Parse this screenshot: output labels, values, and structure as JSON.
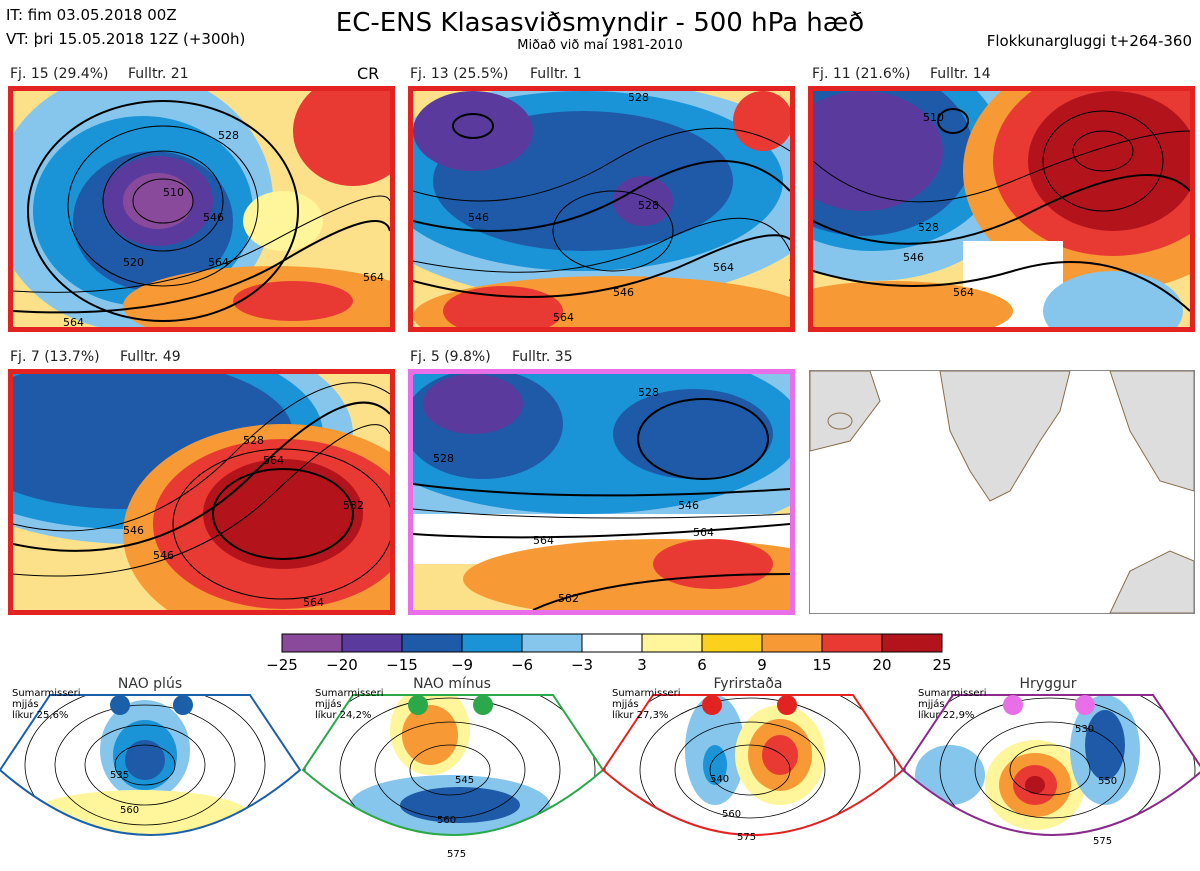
{
  "header": {
    "it_line": "IT: fim 03.05.2018 00Z",
    "vt_line": "VT: þri 15.05.2018 12Z  (+300h)",
    "title": "EC-ENS Klasasviðsmyndir - 500 hPa hæð",
    "subtitle": "Miðað við maí 1981-2010",
    "window": "Flokkunargluggi t+264-360"
  },
  "panels": [
    {
      "label": "Fj. 15 (29.4%)",
      "rep": "Fulltr. 21",
      "tag": "CR",
      "border": "#e32222"
    },
    {
      "label": "Fj. 13 (25.5%)",
      "rep": "Fulltr. 1",
      "tag": "",
      "border": "#e32222"
    },
    {
      "label": "Fj. 11 (21.6%)",
      "rep": "Fulltr. 14",
      "tag": "",
      "border": "#e32222"
    },
    {
      "label": "Fj. 7 (13.7%)",
      "rep": "Fulltr. 49",
      "tag": "",
      "border": "#e32222"
    },
    {
      "label": "Fj. 5 (9.8%)",
      "rep": "Fulltr. 35",
      "tag": "",
      "border": "#e96fe9"
    }
  ],
  "contour_labels": {
    "p1": [
      "46",
      "528",
      "520",
      "54",
      "510",
      "546",
      "528",
      "564",
      "564",
      "564"
    ],
    "p2": [
      "528",
      "546",
      "528",
      "564",
      "546",
      "564",
      "528"
    ],
    "p3": [
      "510",
      "46",
      "564",
      "528",
      "546",
      "564"
    ],
    "p4": [
      "546",
      "528",
      "546",
      "564",
      "582",
      "564"
    ],
    "p5": [
      "528",
      "528",
      "546",
      "564",
      "564",
      "582"
    ]
  },
  "chart_data": {
    "type": "heatmap",
    "title": "EC-ENS Klasasviðsmyndir - 500 hPa hæð",
    "colorbar": {
      "ticks": [
        "−25",
        "−20",
        "−15",
        "−9",
        "−6",
        "−3",
        "3",
        "6",
        "9",
        "15",
        "20",
        "25"
      ],
      "colors": [
        "#8a4a9c",
        "#5a3b9d",
        "#1e5aa8",
        "#1a94d6",
        "#86c6ec",
        "#ffffff",
        "#fff59a",
        "#fcd11c",
        "#f79a35",
        "#e83a32",
        "#b3141c"
      ]
    },
    "clusters": [
      {
        "name": "Fj. 15",
        "percent": 29.4,
        "representative": 21
      },
      {
        "name": "Fj. 13",
        "percent": 25.5,
        "representative": 1
      },
      {
        "name": "Fj. 11",
        "percent": 21.6,
        "representative": 14
      },
      {
        "name": "Fj. 7",
        "percent": 13.7,
        "representative": 49
      },
      {
        "name": "Fj. 5",
        "percent": 9.8,
        "representative": 35
      }
    ],
    "regimes": [
      {
        "name": "NAO plús",
        "season": "Sumarmisseri",
        "blend": "mjjás",
        "likelihood": "líkur 25,6%",
        "color": "#1b5fa8",
        "labels": [
          "535",
          "560"
        ]
      },
      {
        "name": "NAO mínus",
        "season": "Sumarmisseri",
        "blend": "mjjás",
        "likelihood": "líkur 24,2%",
        "color": "#2aa84a",
        "labels": [
          "545",
          "560",
          "575"
        ]
      },
      {
        "name": "Fyrirstaða",
        "season": "Sumarmisseri",
        "blend": "mjjás",
        "likelihood": "líkur 27,3%",
        "color": "#e32222",
        "labels": [
          "540",
          "560",
          "575"
        ]
      },
      {
        "name": "Hryggur",
        "season": "Sumarmisseri",
        "blend": "mjjás",
        "likelihood": "líkur 22,9%",
        "color": "#e96fe9",
        "labels": [
          "530",
          "550",
          "575"
        ]
      }
    ]
  }
}
